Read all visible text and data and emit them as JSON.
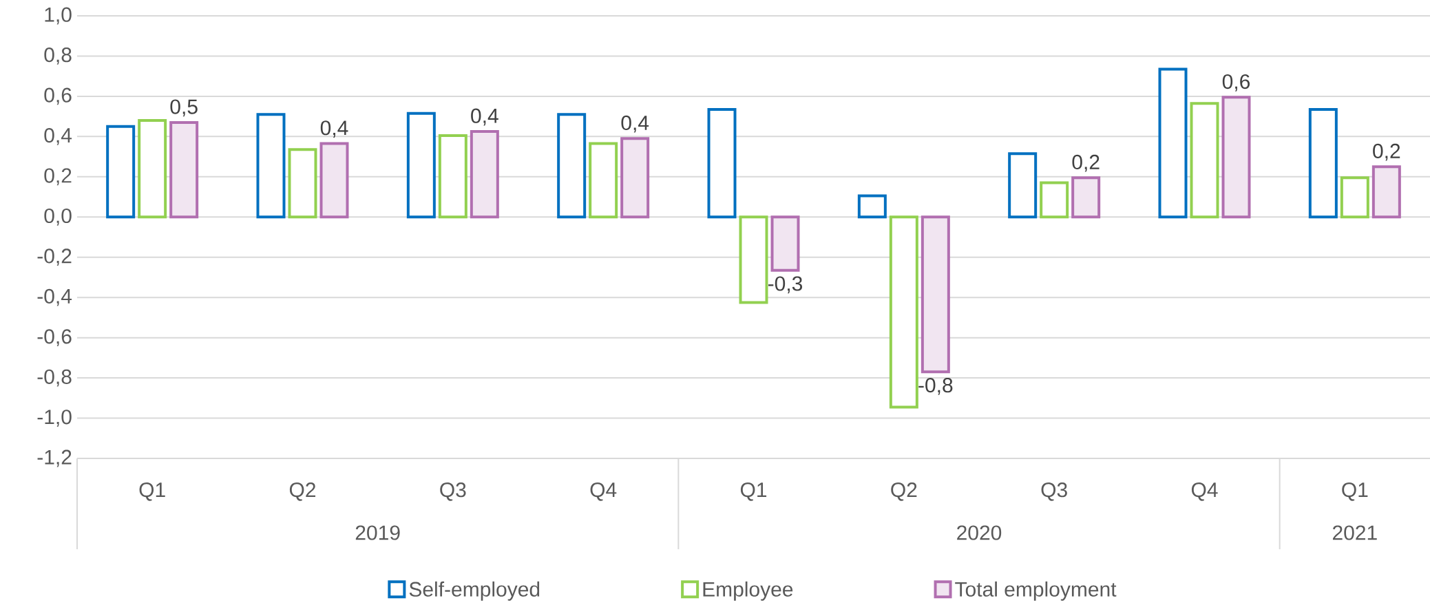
{
  "chart_data": {
    "type": "bar",
    "categories": [
      "Q1",
      "Q2",
      "Q3",
      "Q4",
      "Q1",
      "Q2",
      "Q3",
      "Q4",
      "Q1"
    ],
    "series": [
      {
        "name": "Self-employed",
        "color": "#0070c0",
        "values": [
          0.45,
          0.51,
          0.515,
          0.51,
          0.535,
          0.105,
          0.315,
          0.735,
          0.535
        ]
      },
      {
        "name": "Employee",
        "color": "#92d050",
        "values": [
          0.48,
          0.335,
          0.405,
          0.365,
          -0.425,
          -0.945,
          0.17,
          0.565,
          0.195
        ]
      },
      {
        "name": "Total employment",
        "color": "#b16fb0",
        "values": [
          0.47,
          0.365,
          0.425,
          0.39,
          -0.265,
          -0.77,
          0.195,
          0.595,
          0.25
        ],
        "value_labels": [
          "0,5",
          "0,4",
          "0,4",
          "0,4",
          "-0,3",
          "-0,8",
          "0,2",
          "0,6",
          "0,2"
        ]
      }
    ],
    "annotations": [
      "2019",
      "2020",
      "2021"
    ],
    "ylim": [
      -1.2,
      1.0
    ],
    "yticks": [
      {
        "value": -1.2,
        "label": "-1,2"
      },
      {
        "value": -1.0,
        "label": "-1,0"
      },
      {
        "value": -0.8,
        "label": "-0,8"
      },
      {
        "value": -0.6,
        "label": "-0,6"
      },
      {
        "value": -0.4,
        "label": "-0,4"
      },
      {
        "value": -0.2,
        "label": "-0,2"
      },
      {
        "value": 0.0,
        "label": "0,0"
      },
      {
        "value": 0.2,
        "label": "0,2"
      },
      {
        "value": 0.4,
        "label": "0,4"
      },
      {
        "value": 0.6,
        "label": "0,6"
      },
      {
        "value": 0.8,
        "label": "0,8"
      },
      {
        "value": 1.0,
        "label": "1,0"
      }
    ],
    "grid": "y",
    "legend": "bottom"
  }
}
